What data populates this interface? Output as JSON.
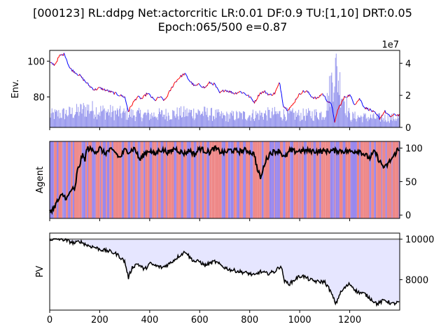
{
  "figure": {
    "title_line1": "[000123] RL:ddpg Net:actorcritic LR:0.01 DF:0.9 TU:[1,10] DRT:0.05",
    "title_line2": "Epoch:065/500 e=0.87"
  },
  "colors": {
    "price_up": "#ff0000",
    "price_down": "#0000ff",
    "volume": "#9999ee",
    "agent_line": "#000000",
    "agent_bg_red": "#ee8888",
    "agent_bg_blue": "#9988ee",
    "pv_line": "#000000",
    "pv_fill": "#e6e6ff",
    "baseline": "#808080"
  },
  "chart_data": [
    {
      "type": "line",
      "panel": "env",
      "ylabel": "Env.",
      "xlim": [
        0,
        1400
      ],
      "ylim": [
        63,
        106
      ],
      "y_ticks": [
        80,
        100
      ],
      "y2_ticks": [
        0,
        2,
        4
      ],
      "y2_tick_labels": [
        "0",
        "2",
        "4"
      ],
      "y2_offset_label": "1e7",
      "y2lim": [
        0,
        4.8
      ],
      "price_keypoints": [
        [
          0,
          99
        ],
        [
          20,
          98
        ],
        [
          40,
          103
        ],
        [
          60,
          104
        ],
        [
          80,
          96
        ],
        [
          100,
          94
        ],
        [
          120,
          92
        ],
        [
          140,
          89
        ],
        [
          160,
          86
        ],
        [
          180,
          84
        ],
        [
          200,
          85
        ],
        [
          220,
          84
        ],
        [
          240,
          83
        ],
        [
          260,
          82
        ],
        [
          280,
          81
        ],
        [
          300,
          80
        ],
        [
          315,
          72
        ],
        [
          330,
          76
        ],
        [
          350,
          80
        ],
        [
          370,
          79
        ],
        [
          390,
          82
        ],
        [
          400,
          81
        ],
        [
          420,
          78
        ],
        [
          440,
          80
        ],
        [
          460,
          78
        ],
        [
          480,
          83
        ],
        [
          500,
          88
        ],
        [
          520,
          91
        ],
        [
          540,
          93
        ],
        [
          560,
          89
        ],
        [
          580,
          86
        ],
        [
          600,
          87
        ],
        [
          620,
          85
        ],
        [
          640,
          88
        ],
        [
          660,
          87
        ],
        [
          680,
          82
        ],
        [
          700,
          84
        ],
        [
          720,
          83
        ],
        [
          740,
          82
        ],
        [
          760,
          83
        ],
        [
          780,
          82
        ],
        [
          800,
          80
        ],
        [
          820,
          77
        ],
        [
          840,
          82
        ],
        [
          860,
          83
        ],
        [
          880,
          81
        ],
        [
          900,
          82
        ],
        [
          920,
          88
        ],
        [
          935,
          75
        ],
        [
          950,
          73
        ],
        [
          970,
          75
        ],
        [
          990,
          80
        ],
        [
          1010,
          83
        ],
        [
          1030,
          83
        ],
        [
          1050,
          80
        ],
        [
          1070,
          79
        ],
        [
          1090,
          82
        ],
        [
          1110,
          78
        ],
        [
          1130,
          75
        ],
        [
          1140,
          65
        ],
        [
          1150,
          72
        ],
        [
          1160,
          75
        ],
        [
          1180,
          80
        ],
        [
          1200,
          81
        ],
        [
          1220,
          76
        ],
        [
          1240,
          79
        ],
        [
          1260,
          74
        ],
        [
          1280,
          73
        ],
        [
          1300,
          71
        ],
        [
          1320,
          68
        ],
        [
          1340,
          72
        ],
        [
          1360,
          69
        ],
        [
          1380,
          70
        ],
        [
          1400,
          70
        ]
      ],
      "volume_keypoints": [
        [
          0,
          0.9
        ],
        [
          100,
          1.1
        ],
        [
          150,
          1.4
        ],
        [
          200,
          1.2
        ],
        [
          300,
          1.0
        ],
        [
          400,
          0.9
        ],
        [
          500,
          1.0
        ],
        [
          600,
          1.1
        ],
        [
          700,
          0.8
        ],
        [
          800,
          0.9
        ],
        [
          900,
          1.0
        ],
        [
          1000,
          0.9
        ],
        [
          1100,
          1.0
        ],
        [
          1140,
          4.4
        ],
        [
          1200,
          0.8
        ],
        [
          1300,
          0.7
        ],
        [
          1400,
          0.7
        ]
      ]
    },
    {
      "type": "line",
      "panel": "agent",
      "ylabel": "Agent",
      "xlim": [
        0,
        1400
      ],
      "ylim": [
        -5,
        110
      ],
      "y2_ticks": [
        0,
        50,
        100
      ],
      "position_keypoints": [
        [
          0,
          5
        ],
        [
          15,
          10
        ],
        [
          30,
          20
        ],
        [
          50,
          30
        ],
        [
          70,
          25
        ],
        [
          90,
          40
        ],
        [
          100,
          35
        ],
        [
          110,
          65
        ],
        [
          120,
          75
        ],
        [
          130,
          90
        ],
        [
          140,
          82
        ],
        [
          150,
          100
        ],
        [
          170,
          97
        ],
        [
          190,
          95
        ],
        [
          200,
          100
        ],
        [
          220,
          92
        ],
        [
          240,
          97
        ],
        [
          260,
          95
        ],
        [
          280,
          85
        ],
        [
          300,
          97
        ],
        [
          320,
          95
        ],
        [
          340,
          100
        ],
        [
          360,
          82
        ],
        [
          380,
          92
        ],
        [
          400,
          97
        ],
        [
          420,
          90
        ],
        [
          440,
          98
        ],
        [
          460,
          96
        ],
        [
          480,
          93
        ],
        [
          500,
          100
        ],
        [
          520,
          95
        ],
        [
          540,
          92
        ],
        [
          560,
          97
        ],
        [
          580,
          90
        ],
        [
          600,
          100
        ],
        [
          620,
          96
        ],
        [
          640,
          94
        ],
        [
          660,
          100
        ],
        [
          680,
          95
        ],
        [
          700,
          93
        ],
        [
          720,
          97
        ],
        [
          740,
          96
        ],
        [
          760,
          95
        ],
        [
          780,
          97
        ],
        [
          800,
          95
        ],
        [
          820,
          90
        ],
        [
          830,
          68
        ],
        [
          845,
          55
        ],
        [
          860,
          78
        ],
        [
          880,
          92
        ],
        [
          900,
          95
        ],
        [
          920,
          96
        ],
        [
          940,
          85
        ],
        [
          960,
          96
        ],
        [
          980,
          95
        ],
        [
          1000,
          96
        ],
        [
          1040,
          96
        ],
        [
          1080,
          95
        ],
        [
          1120,
          96
        ],
        [
          1160,
          96
        ],
        [
          1200,
          95
        ],
        [
          1240,
          96
        ],
        [
          1260,
          90
        ],
        [
          1280,
          85
        ],
        [
          1300,
          95
        ],
        [
          1320,
          80
        ],
        [
          1340,
          70
        ],
        [
          1360,
          80
        ],
        [
          1380,
          90
        ],
        [
          1390,
          98
        ],
        [
          1400,
          95
        ]
      ]
    },
    {
      "type": "area",
      "panel": "pv",
      "ylabel": "PV",
      "xlim": [
        0,
        1400
      ],
      "x_ticks": [
        0,
        200,
        400,
        600,
        800,
        1000,
        1200
      ],
      "ylim": [
        6500,
        10300
      ],
      "y2_ticks": [
        8000,
        10000
      ],
      "baseline": 10000,
      "pv_keypoints": [
        [
          0,
          10000
        ],
        [
          50,
          10000
        ],
        [
          100,
          9800
        ],
        [
          120,
          9900
        ],
        [
          150,
          9700
        ],
        [
          180,
          9600
        ],
        [
          200,
          9500
        ],
        [
          240,
          9400
        ],
        [
          270,
          9250
        ],
        [
          300,
          8900
        ],
        [
          315,
          8100
        ],
        [
          330,
          8600
        ],
        [
          350,
          8800
        ],
        [
          380,
          8500
        ],
        [
          400,
          8800
        ],
        [
          420,
          8700
        ],
        [
          450,
          8600
        ],
        [
          480,
          8800
        ],
        [
          520,
          9200
        ],
        [
          545,
          9400
        ],
        [
          560,
          9100
        ],
        [
          580,
          8900
        ],
        [
          600,
          8900
        ],
        [
          620,
          8700
        ],
        [
          660,
          8900
        ],
        [
          700,
          8600
        ],
        [
          720,
          8500
        ],
        [
          760,
          8400
        ],
        [
          800,
          8300
        ],
        [
          820,
          8200
        ],
        [
          840,
          8400
        ],
        [
          870,
          8300
        ],
        [
          900,
          8400
        ],
        [
          925,
          8700
        ],
        [
          940,
          7900
        ],
        [
          960,
          7800
        ],
        [
          990,
          8100
        ],
        [
          1010,
          8200
        ],
        [
          1040,
          8000
        ],
        [
          1070,
          7900
        ],
        [
          1100,
          7900
        ],
        [
          1120,
          7500
        ],
        [
          1145,
          6800
        ],
        [
          1160,
          7300
        ],
        [
          1180,
          7600
        ],
        [
          1200,
          7800
        ],
        [
          1230,
          7400
        ],
        [
          1260,
          7300
        ],
        [
          1290,
          7000
        ],
        [
          1310,
          6800
        ],
        [
          1340,
          7000
        ],
        [
          1370,
          6800
        ],
        [
          1400,
          6900
        ]
      ]
    }
  ]
}
